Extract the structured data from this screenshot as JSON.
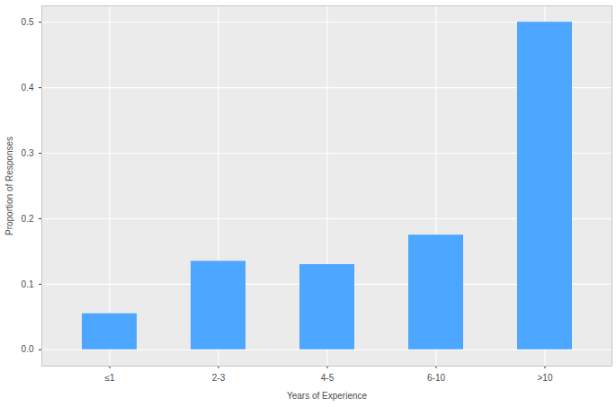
{
  "chart_data": {
    "type": "bar",
    "x_label": "Years of Experience",
    "y_label": "Proportion of Responses",
    "categories": [
      "≤1",
      "2-3",
      "4-5",
      "6-10",
      ">10"
    ],
    "values": [
      0.055,
      0.135,
      0.13,
      0.175,
      0.5
    ],
    "color": "#4DA6FF",
    "ylim": [
      -0.025,
      0.525
    ],
    "yticks": [
      {
        "value": 0,
        "label": "0.0"
      },
      0.1,
      0.2,
      0.3,
      0.4,
      0.5
    ],
    "grid": true
  }
}
